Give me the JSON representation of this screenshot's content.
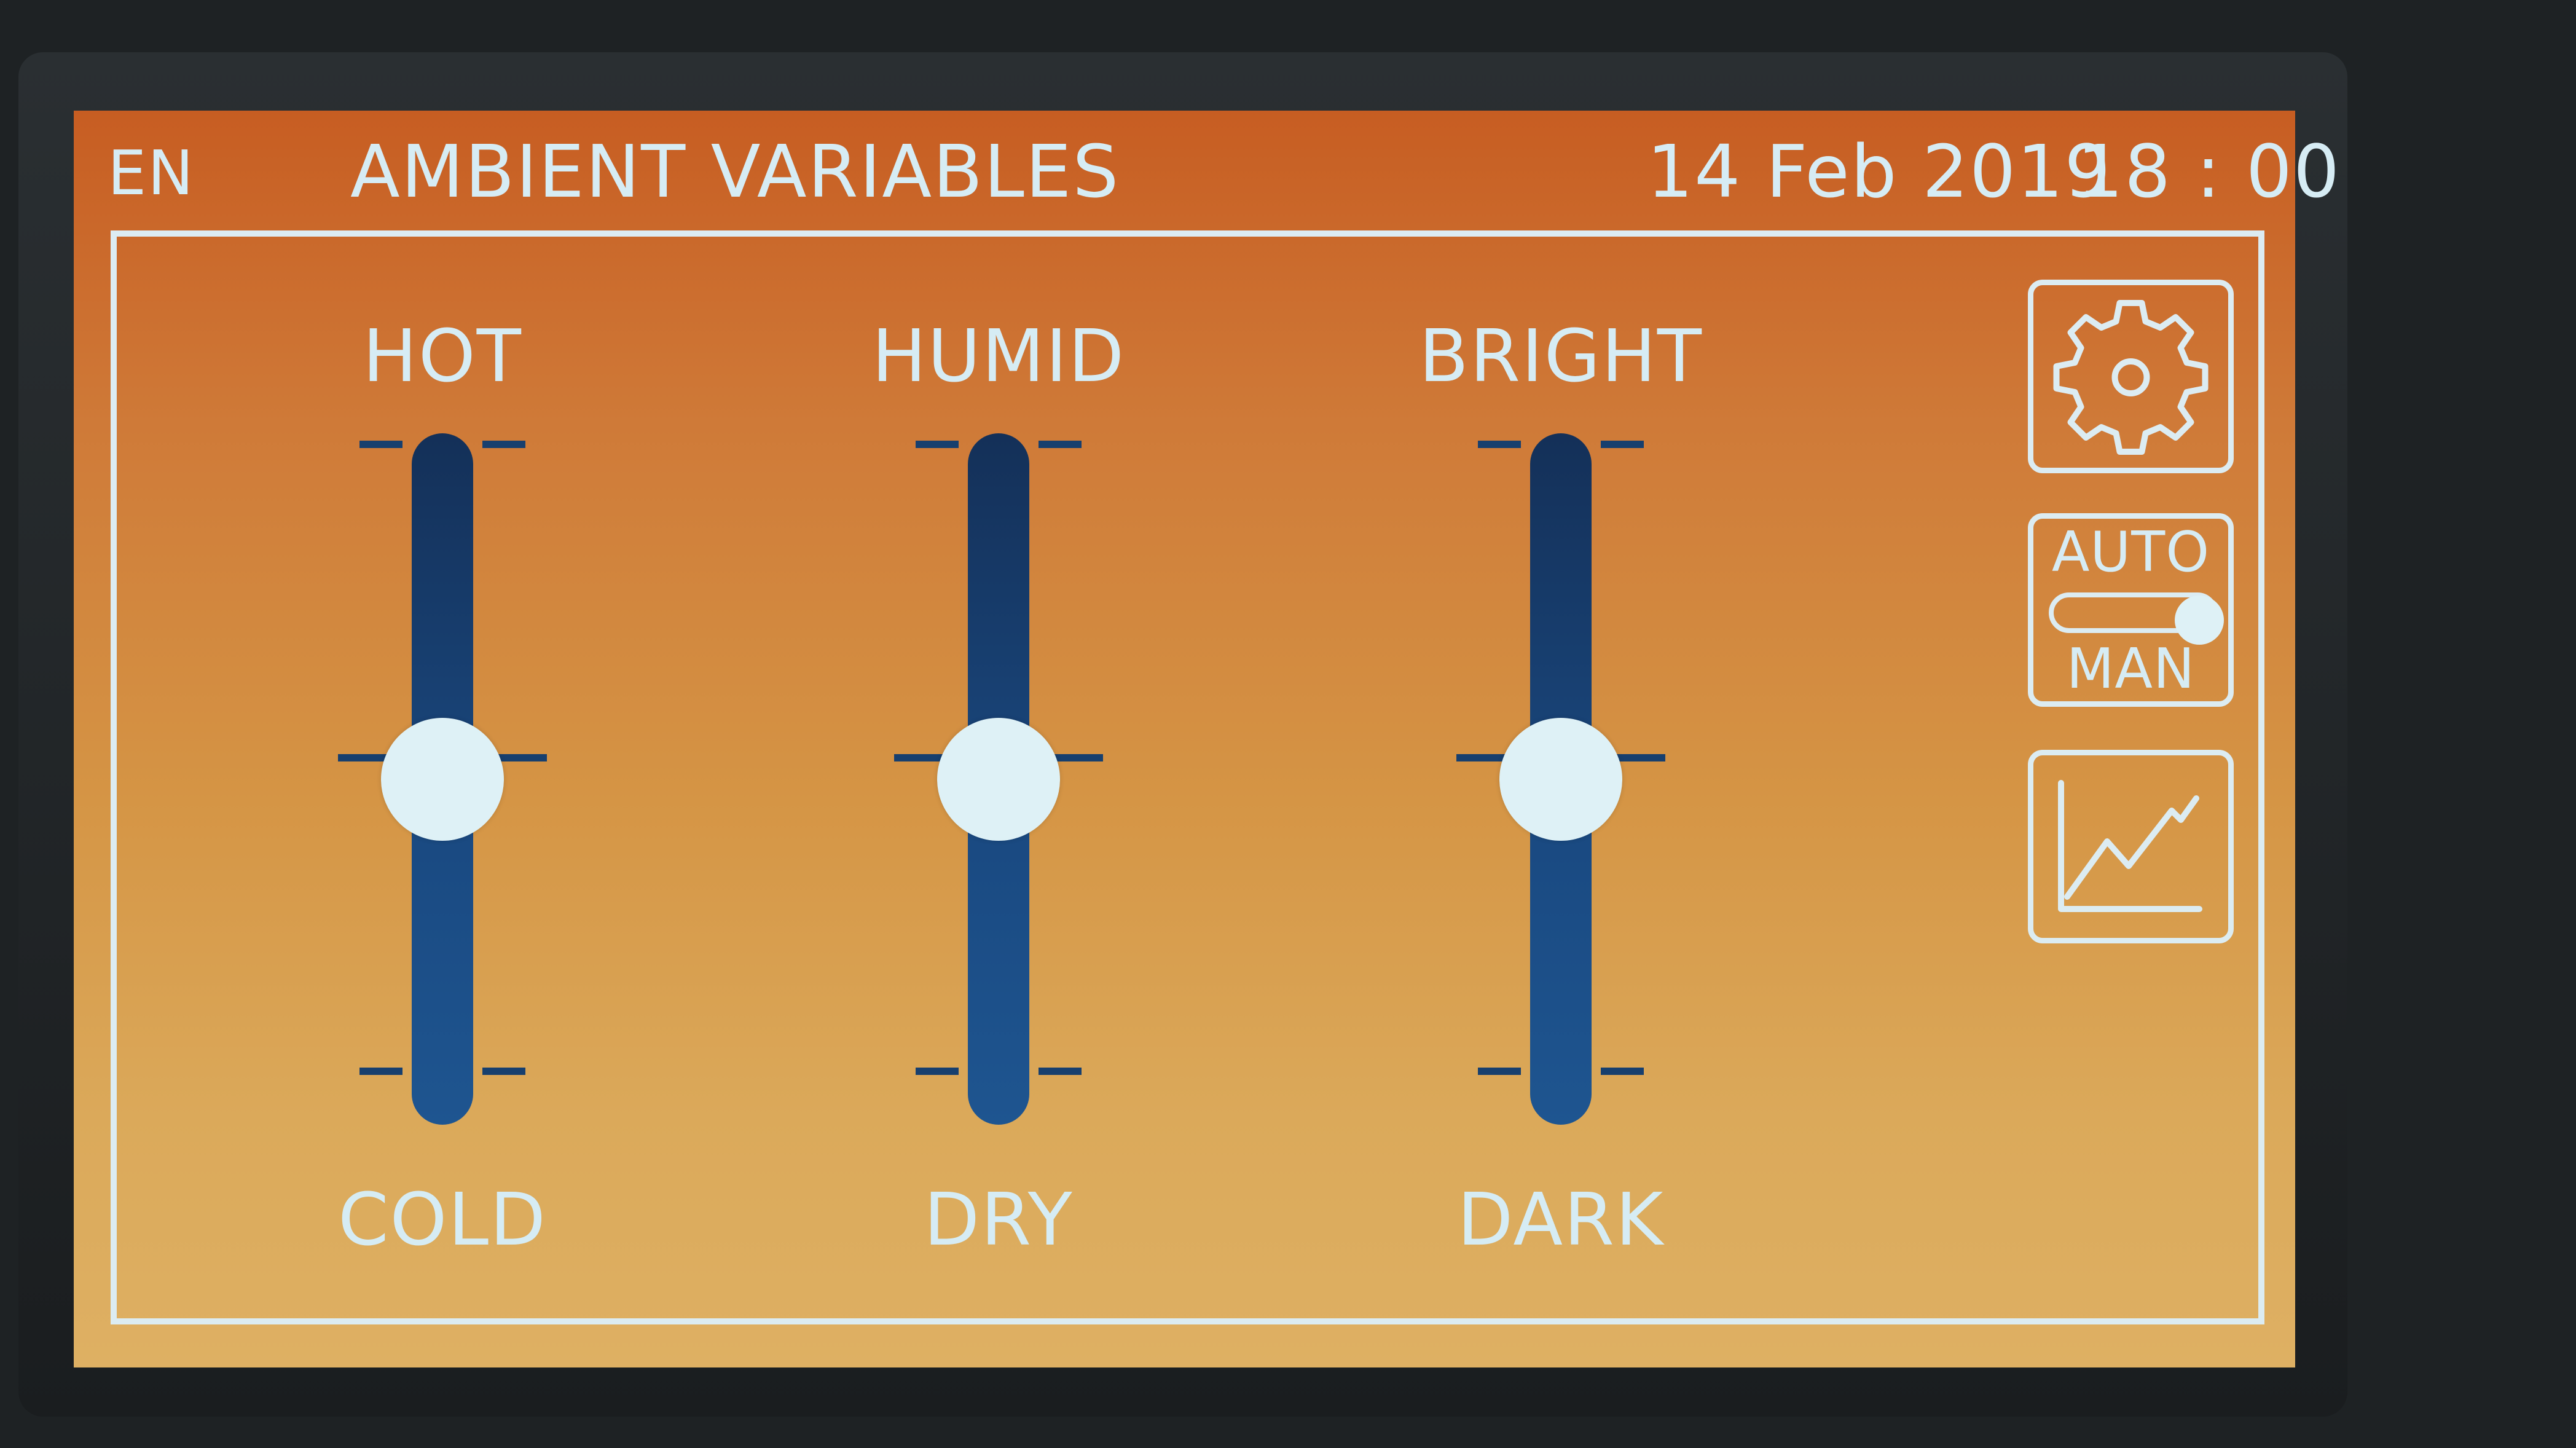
{
  "header": {
    "language": "EN",
    "title": "AMBIENT VARIABLES",
    "date": "14 Feb 2019",
    "time": "18 : 00"
  },
  "sliders": [
    {
      "top_label": "HOT",
      "bottom_label": "COLD",
      "level": 0.5
    },
    {
      "top_label": "HUMID",
      "bottom_label": "DRY",
      "level": 0.5
    },
    {
      "top_label": "BRIGHT",
      "bottom_label": "DARK",
      "level": 0.5
    }
  ],
  "side_controls": {
    "settings_icon": "gear-icon",
    "mode": {
      "auto_label": "AUTO",
      "manual_label": "MAN",
      "selected": "AUTO"
    },
    "chart_icon": "line-chart-icon"
  },
  "colors": {
    "text": "#d6ecf4",
    "track": "#1a4a82",
    "thumb": "#def1f6",
    "screen_top": "#c75d22",
    "screen_bottom": "#deb063"
  }
}
